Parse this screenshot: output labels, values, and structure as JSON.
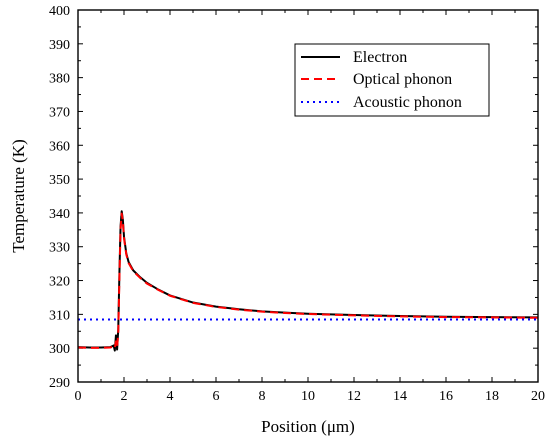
{
  "chart_data": {
    "type": "line",
    "title": "",
    "xlabel": "Position (μm)",
    "ylabel": "Temperature (K)",
    "xlim": [
      0,
      20
    ],
    "ylim": [
      290,
      400
    ],
    "xticks": [
      0,
      2,
      4,
      6,
      8,
      10,
      12,
      14,
      16,
      18,
      20
    ],
    "yticks": [
      290,
      300,
      310,
      320,
      330,
      340,
      350,
      360,
      370,
      380,
      390,
      400
    ],
    "grid": false,
    "legend_position": "top-right",
    "series": [
      {
        "name": "Electron",
        "color": "#000000",
        "style": "solid",
        "x": [
          0,
          0.5,
          1.0,
          1.4,
          1.55,
          1.6,
          1.65,
          1.7,
          1.75,
          1.8,
          1.85,
          1.9,
          1.95,
          2.0,
          2.1,
          2.2,
          2.4,
          2.7,
          3.0,
          3.5,
          4.0,
          5.0,
          6.0,
          7.0,
          8.0,
          9.0,
          10.0,
          11.0,
          12.0,
          14.0,
          16.0,
          18.0,
          20.0
        ],
        "y": [
          300.3,
          300.2,
          300.2,
          300.3,
          300.8,
          299.3,
          303.8,
          299.6,
          305.5,
          322.0,
          336.0,
          340.5,
          338.0,
          333.0,
          328.0,
          325.5,
          323.0,
          321.0,
          319.3,
          317.3,
          315.6,
          313.5,
          312.3,
          311.5,
          310.9,
          310.5,
          310.2,
          310.0,
          309.8,
          309.5,
          309.3,
          309.2,
          309.1
        ]
      },
      {
        "name": "Optical phonon",
        "color": "#ff0000",
        "style": "dashed",
        "x": [
          0,
          0.5,
          1.0,
          1.4,
          1.55,
          1.6,
          1.65,
          1.7,
          1.75,
          1.8,
          1.85,
          1.9,
          1.95,
          2.0,
          2.1,
          2.2,
          2.4,
          2.7,
          3.0,
          3.5,
          4.0,
          5.0,
          6.0,
          7.0,
          8.0,
          9.0,
          10.0,
          11.0,
          12.0,
          14.0,
          16.0,
          18.0,
          20.0
        ],
        "y": [
          300.2,
          300.1,
          300.1,
          300.2,
          300.5,
          300.0,
          302.0,
          300.3,
          304.5,
          320.5,
          335.0,
          339.8,
          337.5,
          332.5,
          327.7,
          325.2,
          322.8,
          320.8,
          319.1,
          317.2,
          315.5,
          313.4,
          312.2,
          311.4,
          310.8,
          310.4,
          310.1,
          309.9,
          309.7,
          309.4,
          309.2,
          309.1,
          309.0
        ]
      },
      {
        "name": "Acoustic phonon",
        "color": "#0000ff",
        "style": "dotted",
        "x": [
          0,
          20
        ],
        "y": [
          308.5,
          308.5
        ]
      }
    ]
  }
}
